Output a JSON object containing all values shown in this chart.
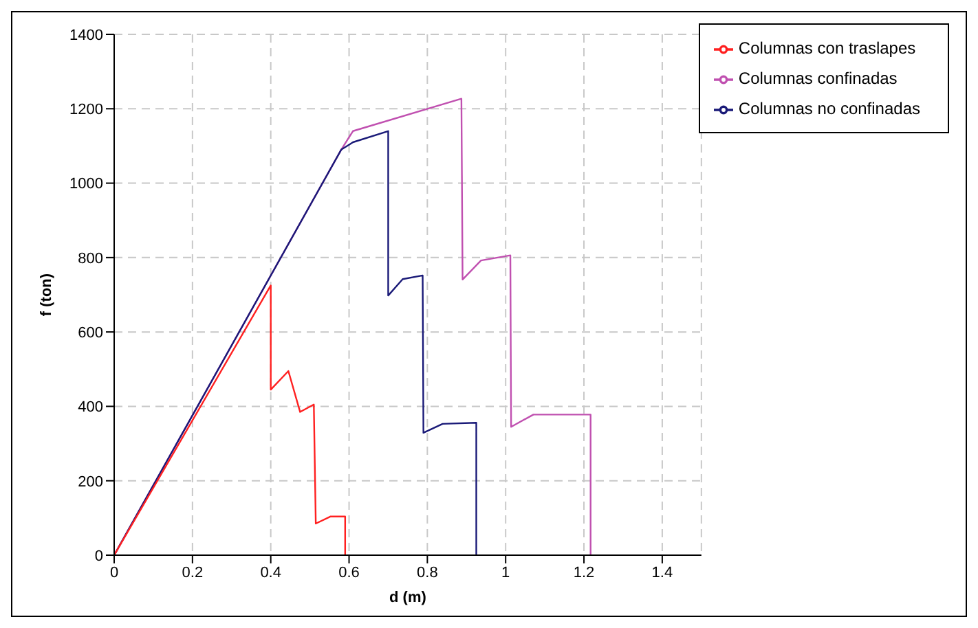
{
  "chart_data": {
    "type": "line",
    "xlabel": "d (m)",
    "ylabel": "f (ton)",
    "xlim": [
      0,
      1.5
    ],
    "xticks": [
      0,
      0.2,
      0.4,
      0.6,
      0.8,
      1,
      1.2,
      1.4
    ],
    "ylim": [
      0,
      1400
    ],
    "yticks": [
      0,
      200,
      400,
      600,
      800,
      1000,
      1200,
      1400
    ],
    "grid": true,
    "legend": "top right",
    "marker": "none",
    "line_style": "solid",
    "series": [
      {
        "name": "Columnas confinadas",
        "color": "#c050b0",
        "x": [
          0,
          0.58,
          0.61,
          0.887,
          0.89,
          0.937,
          1.012,
          1.014,
          1.071,
          1.217,
          1.217
        ],
        "values": [
          0,
          1090,
          1140,
          1227,
          741,
          792,
          806,
          345,
          378,
          378,
          0
        ]
      },
      {
        "name": "Columnas no confinadas",
        "color": "#1a1a78",
        "x": [
          0,
          0.58,
          0.61,
          0.7,
          0.7,
          0.737,
          0.788,
          0.79,
          0.839,
          0.925,
          0.925
        ],
        "values": [
          0,
          1090,
          1110,
          1140,
          698,
          742,
          752,
          329,
          353,
          356,
          0
        ]
      },
      {
        "name": "Columnas con traslapes",
        "color": "#ff2020",
        "x": [
          0,
          0.4,
          0.4,
          0.445,
          0.475,
          0.51,
          0.515,
          0.553,
          0.59,
          0.59
        ],
        "values": [
          0,
          725,
          445,
          495,
          385,
          405,
          85,
          104,
          104,
          0
        ]
      }
    ]
  }
}
